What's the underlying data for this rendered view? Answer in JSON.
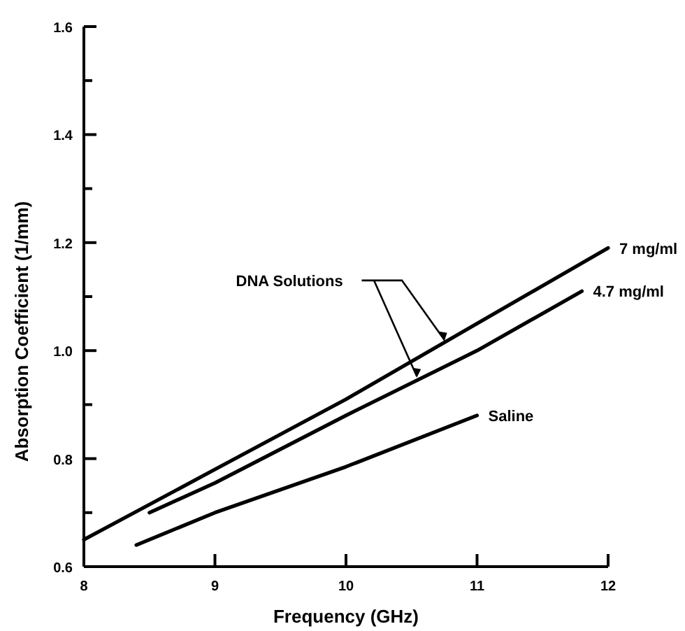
{
  "chart_data": {
    "type": "line",
    "xlabel": "Frequency (GHz)",
    "ylabel": "Absorption Coefficient (1/mm)",
    "xlim": [
      8,
      12
    ],
    "ylim": [
      0.6,
      1.6
    ],
    "xticks": [
      8,
      9,
      10,
      11,
      12
    ],
    "yticks": [
      0.6,
      {
        "value": 0.7,
        "label": null
      },
      0.8,
      {
        "value": 0.9,
        "label": null
      },
      {
        "value": 1,
        "label": "1.0"
      },
      {
        "value": 1.1,
        "label": null
      },
      1.2,
      {
        "value": 1.3,
        "label": null
      },
      1.4,
      {
        "value": 1.5,
        "label": null
      },
      1.6
    ],
    "series": [
      {
        "name": "7 mg/ml",
        "color": "#000000",
        "x": [
          8,
          9,
          10,
          11,
          12
        ],
        "values": [
          0.65,
          0.78,
          0.91,
          1.05,
          1.19
        ]
      },
      {
        "name": "4.7 mg/ml",
        "color": "#000000",
        "x": [
          8.5,
          9,
          10,
          11,
          11.8
        ],
        "values": [
          0.7,
          0.755,
          0.88,
          1.0,
          1.11
        ]
      },
      {
        "name": "Saline",
        "color": "#000000",
        "x": [
          8.4,
          9,
          10,
          11
        ],
        "values": [
          0.64,
          0.7,
          0.785,
          0.88
        ]
      }
    ],
    "annotations": [
      {
        "text": "DNA Solutions",
        "x": 10.75,
        "y": 1.02
      }
    ],
    "grid": false,
    "legend": false,
    "marker": "none",
    "line_style": "solid"
  }
}
